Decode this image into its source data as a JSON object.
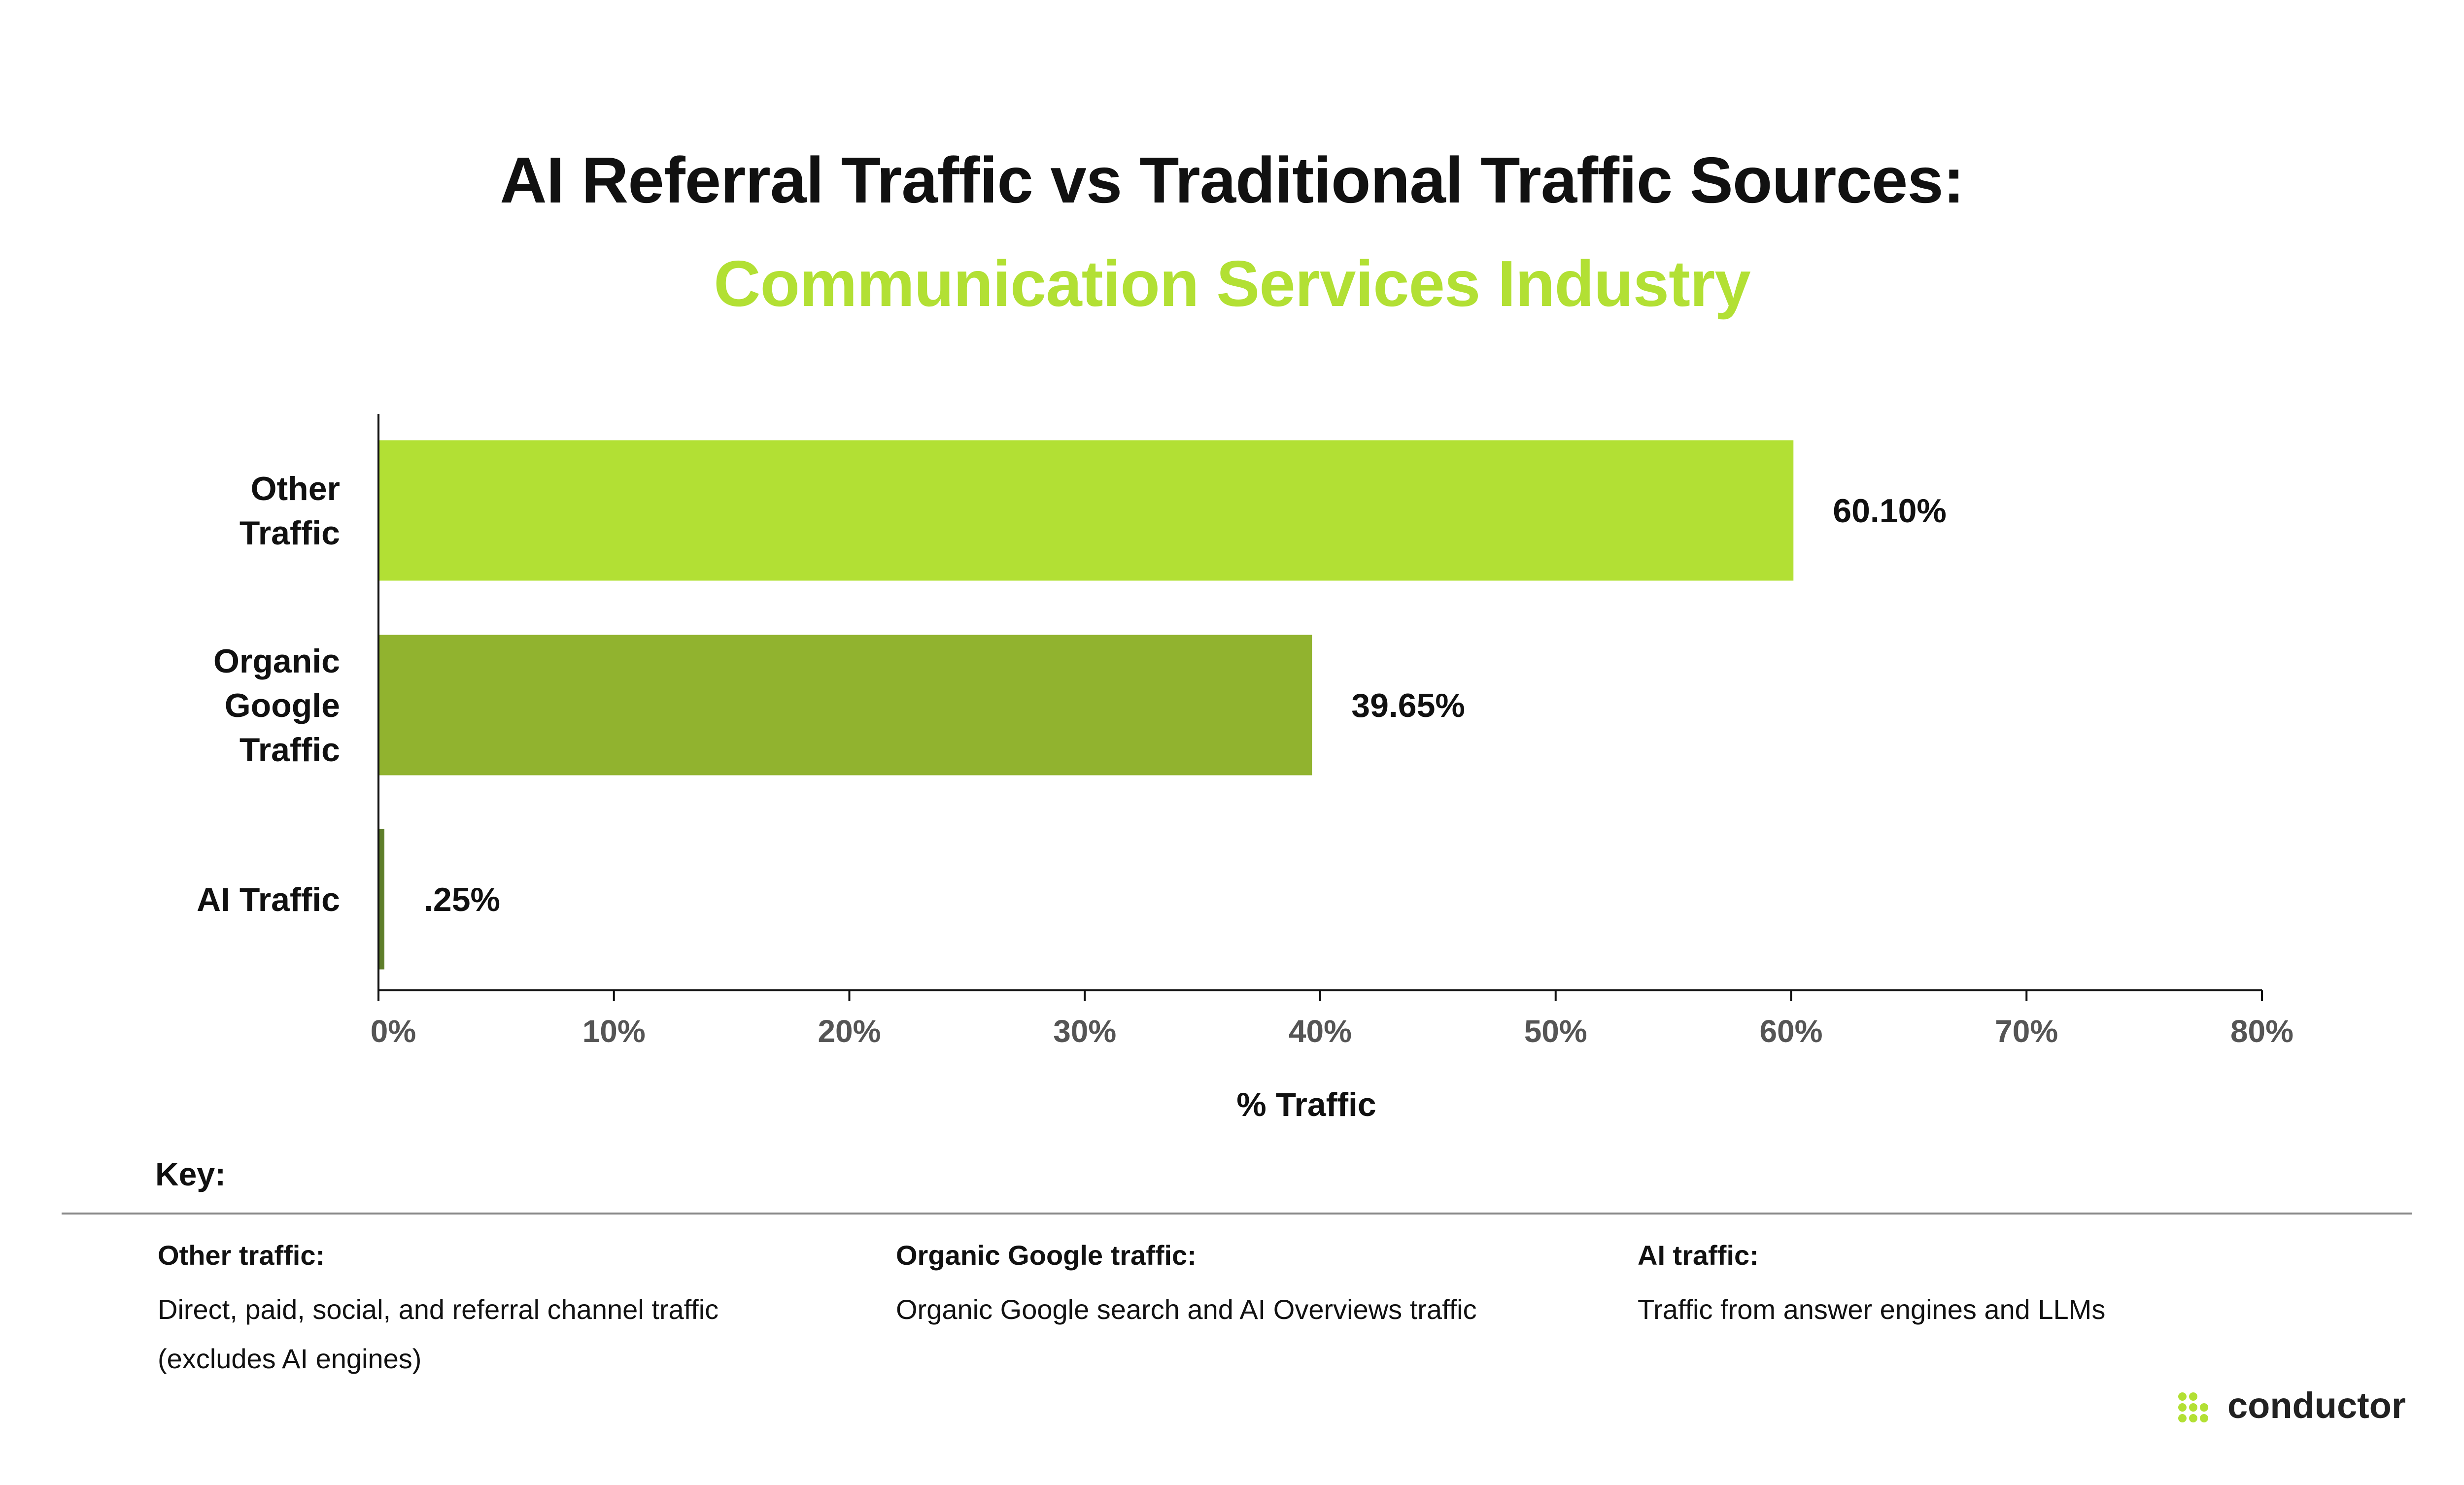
{
  "header": {
    "title": "AI Referral Traffic vs Traditional Traffic Sources:",
    "subtitle": "Communication Services Industry"
  },
  "colors": {
    "title": "#111111",
    "subtitle": "#B2E034",
    "other": "#B2E034",
    "organic": "#91B32F",
    "ai": "#5E7E2A",
    "axis": "#111111",
    "tick_text": "#555555",
    "logo_dots": "#B2E034"
  },
  "chart_data": {
    "type": "bar",
    "orientation": "horizontal",
    "categories": [
      [
        "Other",
        "Traffic"
      ],
      [
        "Organic",
        "Google",
        "Traffic"
      ],
      [
        "AI Traffic"
      ]
    ],
    "values": [
      60.1,
      39.65,
      0.25
    ],
    "value_labels": [
      "60.10%",
      "39.65%",
      ".25%"
    ],
    "xlabel": "% Traffic",
    "ylabel": "",
    "xlim": [
      0,
      80
    ],
    "xticks": [
      0,
      10,
      20,
      30,
      40,
      50,
      60,
      70,
      80
    ],
    "xtick_labels": [
      "0%",
      "10%",
      "20%",
      "30%",
      "40%",
      "50%",
      "60%",
      "70%",
      "80%"
    ],
    "grid": false,
    "legend": "none"
  },
  "key": {
    "title": "Key:",
    "items": [
      {
        "label": "Other traffic:",
        "description": [
          "Direct, paid, social, and referral channel traffic",
          "(excludes AI engines)"
        ]
      },
      {
        "label": "Organic Google traffic:",
        "description": [
          "Organic Google search and AI Overviews traffic"
        ]
      },
      {
        "label": "AI traffic:",
        "description": [
          "Traffic from answer engines and LLMs"
        ]
      }
    ]
  },
  "logo": {
    "text": "conductor"
  }
}
